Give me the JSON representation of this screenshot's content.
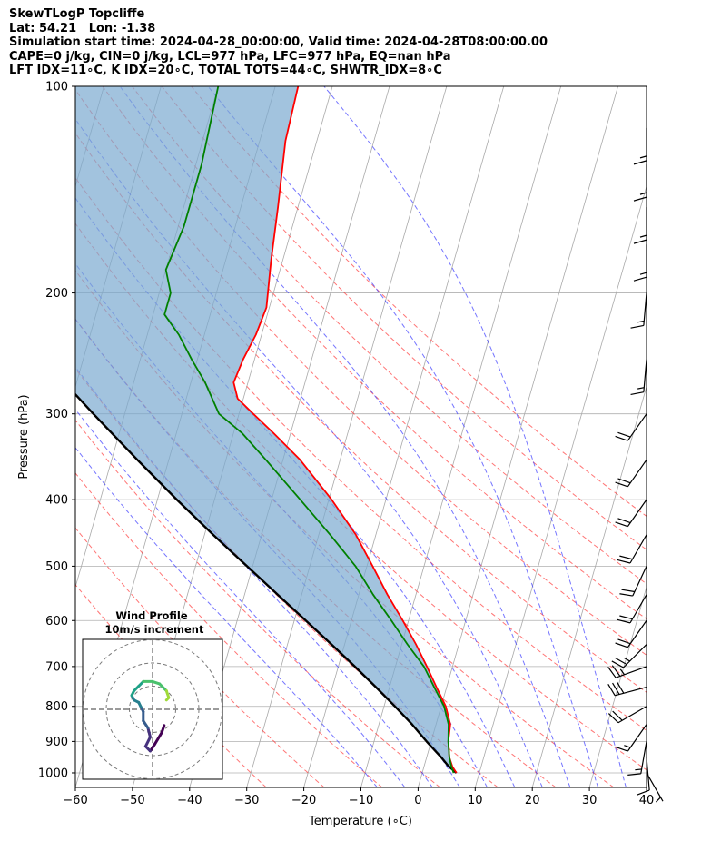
{
  "header": {
    "lines": [
      "SkewTLogP Topcliffe",
      "Lat: 54.21   Lon: -1.38",
      "Simulation start time: 2024-04-28_00:00:00, Valid time: 2024-04-28T08:00:00.00",
      "CAPE=0 j/kg, CIN=0 j/kg, LCL=977 hPa, LFC=977 hPa, EQ=nan hPa",
      "LFT IDX=11∘C, K IDX=20∘C, TOTAL TOTS=44∘C, SHWTR_IDX=8∘C"
    ]
  },
  "hodograph": {
    "title": "Wind Profile",
    "subtitle": "10m/s increment"
  },
  "chart_data": {
    "type": "line",
    "xlabel": "Temperature (∘C)",
    "ylabel": "Pressure (hPa)",
    "xlim": [
      -60,
      40
    ],
    "ylim": [
      1050,
      100
    ],
    "yscale": "log",
    "skew": 35,
    "grid": true,
    "xticks": [
      -60,
      -50,
      -40,
      -30,
      -20,
      -10,
      0,
      10,
      20,
      30,
      40
    ],
    "yticks": [
      1000,
      900,
      800,
      700,
      600,
      500,
      400,
      300,
      200,
      100
    ],
    "dry_adiabats_theta_C": [
      -30,
      -20,
      -10,
      0,
      10,
      20,
      30,
      40,
      50,
      60,
      70,
      80,
      90,
      100,
      110
    ],
    "moist_adiabats_T_C": [
      -10,
      -5,
      0,
      5,
      10,
      15,
      20,
      25,
      30,
      35
    ],
    "series": [
      {
        "role": "temperature",
        "color": "#ff0000",
        "p": [
          1000,
          980,
          950,
          900,
          850,
          800,
          750,
          700,
          650,
          600,
          550,
          500,
          450,
          400,
          350,
          320,
          300,
          285,
          270,
          250,
          230,
          210,
          180,
          150,
          120,
          100
        ],
        "t": [
          6.0,
          5.0,
          4.0,
          3.0,
          2.5,
          0.8,
          -1.8,
          -4.5,
          -7.5,
          -11.0,
          -15.0,
          -19.0,
          -23.5,
          -29.5,
          -37.0,
          -43.0,
          -47.5,
          -51.0,
          -52.5,
          -52.0,
          -51.0,
          -50.5,
          -52.0,
          -53.5,
          -55.5,
          -56.0
        ]
      },
      {
        "role": "dewpoint",
        "color": "#008000",
        "p": [
          1000,
          980,
          950,
          900,
          850,
          800,
          750,
          700,
          650,
          600,
          550,
          500,
          450,
          400,
          350,
          320,
          300,
          270,
          250,
          230,
          215,
          200,
          185,
          160,
          130,
          100
        ],
        "t": [
          5.5,
          4.8,
          4.0,
          3.0,
          2.2,
          0.5,
          -2.2,
          -5.0,
          -9.0,
          -13.0,
          -17.5,
          -22.0,
          -28.0,
          -35.0,
          -43.0,
          -48.5,
          -53.5,
          -57.5,
          -61.0,
          -64.5,
          -68.0,
          -68.0,
          -70.0,
          -69.0,
          -69.0,
          -70.0
        ]
      },
      {
        "role": "parcel",
        "color": "#000000",
        "p": [
          1000,
          977,
          950,
          900,
          850,
          800,
          750,
          700,
          650,
          600,
          550,
          500,
          450,
          400,
          350,
          300,
          250,
          200,
          150,
          100
        ],
        "t": [
          6.0,
          4.2,
          2.6,
          -0.8,
          -4.2,
          -8.1,
          -12.4,
          -17.1,
          -22.3,
          -28.0,
          -34.2,
          -41.0,
          -48.5,
          -56.6,
          -65.5,
          -75.5,
          -87.0,
          -100.5,
          -117.0,
          -139.0
        ]
      }
    ],
    "wind_barbs": [
      {
        "p": 1000,
        "speed_kt": 5,
        "dir": 150
      },
      {
        "p": 950,
        "speed_kt": 10,
        "dir": 175
      },
      {
        "p": 900,
        "speed_kt": 15,
        "dir": 190
      },
      {
        "p": 850,
        "speed_kt": 15,
        "dir": 215
      },
      {
        "p": 800,
        "speed_kt": 20,
        "dir": 240
      },
      {
        "p": 750,
        "speed_kt": 30,
        "dir": 255
      },
      {
        "p": 700,
        "speed_kt": 25,
        "dir": 250
      },
      {
        "p": 650,
        "speed_kt": 25,
        "dir": 225
      },
      {
        "p": 600,
        "speed_kt": 20,
        "dir": 215
      },
      {
        "p": 550,
        "speed_kt": 20,
        "dir": 210
      },
      {
        "p": 500,
        "speed_kt": 20,
        "dir": 205
      },
      {
        "p": 450,
        "speed_kt": 20,
        "dir": 210
      },
      {
        "p": 400,
        "speed_kt": 20,
        "dir": 215
      },
      {
        "p": 350,
        "speed_kt": 20,
        "dir": 215
      },
      {
        "p": 300,
        "speed_kt": 20,
        "dir": 215
      },
      {
        "p": 250,
        "speed_kt": 15,
        "dir": 185
      },
      {
        "p": 200,
        "speed_kt": 15,
        "dir": 185
      },
      {
        "p": 170,
        "speed_kt": 15,
        "dir": 180
      },
      {
        "p": 150,
        "speed_kt": 15,
        "dir": 180
      },
      {
        "p": 130,
        "speed_kt": 15,
        "dir": 180
      },
      {
        "p": 115,
        "speed_kt": 15,
        "dir": 180
      }
    ],
    "hodograph_rings_ms": [
      10,
      20,
      30
    ],
    "hodograph_uv": [
      [
        5,
        -7
      ],
      [
        4,
        -10
      ],
      [
        1,
        -15
      ],
      [
        -1,
        -18
      ],
      [
        -3,
        -16
      ],
      [
        -1,
        -12
      ],
      [
        -2,
        -8
      ],
      [
        -4,
        -5
      ],
      [
        -4,
        -1
      ],
      [
        -5,
        1
      ],
      [
        -6,
        3
      ],
      [
        -8,
        4
      ],
      [
        -9,
        6
      ],
      [
        -8,
        8
      ],
      [
        -6,
        10
      ],
      [
        -4,
        12
      ],
      [
        0,
        12
      ],
      [
        3,
        11
      ],
      [
        6,
        8
      ],
      [
        7,
        5
      ],
      [
        6,
        4
      ]
    ]
  }
}
